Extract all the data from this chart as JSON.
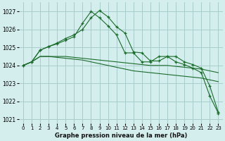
{
  "title": "Graphe pression niveau de la mer (hPa)",
  "bg_color": "#d4eeee",
  "grid_color": "#a8cccc",
  "line_color": "#1a6b2a",
  "xlim": [
    -0.5,
    23.5
  ],
  "ylim": [
    1020.8,
    1027.5
  ],
  "yticks": [
    1021,
    1022,
    1023,
    1024,
    1025,
    1026,
    1027
  ],
  "xticks": [
    0,
    1,
    2,
    3,
    4,
    5,
    6,
    7,
    8,
    9,
    10,
    11,
    12,
    13,
    14,
    15,
    16,
    17,
    18,
    19,
    20,
    21,
    22,
    23
  ],
  "series": [
    {
      "x": [
        0,
        1,
        2,
        3,
        4,
        5,
        6,
        7,
        8,
        9,
        10,
        11,
        12,
        13,
        14,
        15,
        16,
        17,
        18,
        19,
        20,
        21,
        22,
        23
      ],
      "y": [
        1024.0,
        1024.2,
        1024.5,
        1024.5,
        1024.5,
        1024.5,
        1024.45,
        1024.4,
        1024.35,
        1024.3,
        1024.25,
        1024.2,
        1024.15,
        1024.1,
        1024.05,
        1024.0,
        1024.0,
        1024.0,
        1023.95,
        1023.9,
        1023.85,
        1023.8,
        1023.7,
        1023.6
      ],
      "marker": false
    },
    {
      "x": [
        0,
        1,
        2,
        3,
        4,
        5,
        6,
        7,
        8,
        9,
        10,
        11,
        12,
        13,
        14,
        15,
        16,
        17,
        18,
        19,
        20,
        21,
        22,
        23
      ],
      "y": [
        1024.0,
        1024.2,
        1024.5,
        1024.5,
        1024.45,
        1024.4,
        1024.35,
        1024.3,
        1024.2,
        1024.1,
        1024.0,
        1023.9,
        1023.8,
        1023.7,
        1023.65,
        1023.6,
        1023.55,
        1023.5,
        1023.45,
        1023.4,
        1023.35,
        1023.3,
        1023.2,
        1023.1
      ],
      "marker": false
    },
    {
      "x": [
        0,
        1,
        2,
        3,
        4,
        5,
        6,
        7,
        8,
        9,
        10,
        11,
        12,
        13,
        14,
        15,
        16,
        17,
        18,
        19,
        20,
        21,
        22,
        23
      ],
      "y": [
        1024.0,
        1024.2,
        1024.85,
        1025.05,
        1025.2,
        1025.4,
        1025.6,
        1026.35,
        1027.0,
        1026.65,
        1026.2,
        1025.7,
        1024.7,
        1024.7,
        1024.2,
        1024.2,
        1024.5,
        1024.5,
        1024.2,
        1024.05,
        1023.85,
        1023.6,
        1022.3,
        1021.35
      ],
      "marker": true
    },
    {
      "x": [
        0,
        1,
        2,
        3,
        4,
        5,
        6,
        7,
        8,
        9,
        10,
        11,
        12,
        13,
        14,
        15,
        16,
        17,
        18,
        19,
        20,
        21,
        22,
        23
      ],
      "y": [
        1024.0,
        1024.2,
        1024.85,
        1025.05,
        1025.25,
        1025.5,
        1025.7,
        1026.0,
        1026.65,
        1027.05,
        1026.7,
        1026.15,
        1025.8,
        1024.75,
        1024.7,
        1024.25,
        1024.25,
        1024.5,
        1024.5,
        1024.2,
        1024.05,
        1023.85,
        1022.85,
        1021.4
      ],
      "marker": true
    }
  ]
}
